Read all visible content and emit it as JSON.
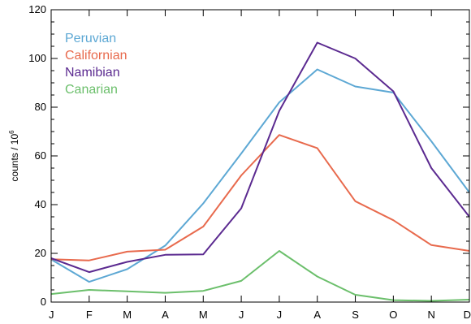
{
  "chart_data": {
    "type": "line",
    "title": "",
    "xlabel": "",
    "ylabel": "counts / 10",
    "ylabel_superscript": "6",
    "categories": [
      "J",
      "F",
      "M",
      "A",
      "M",
      "J",
      "J",
      "A",
      "S",
      "O",
      "N",
      "D"
    ],
    "ylim": [
      0,
      120
    ],
    "yticks": [
      0,
      20,
      40,
      60,
      80,
      100,
      120
    ],
    "grid": false,
    "legend_position": "top-left",
    "series": [
      {
        "name": "Peruvian",
        "color": "#5da8d4",
        "values": [
          17.5,
          8.3,
          13.5,
          23.2,
          40.5,
          61,
          82,
          95.5,
          88.5,
          86,
          66,
          45
        ]
      },
      {
        "name": "Californian",
        "color": "#e86a4d",
        "values": [
          17.6,
          17.1,
          20.7,
          21.5,
          31,
          52,
          68.6,
          63.2,
          41.4,
          33.6,
          23.4,
          21
        ]
      },
      {
        "name": "Namibian",
        "color": "#5b2a90",
        "values": [
          18,
          12.3,
          16.5,
          19.4,
          19.6,
          38.5,
          78.5,
          106.5,
          100,
          86.5,
          55,
          35
        ]
      },
      {
        "name": "Canarian",
        "color": "#6bbf6b",
        "values": [
          3.3,
          5,
          4.4,
          3.8,
          4.6,
          8.7,
          21,
          10.5,
          3,
          0.8,
          0.5,
          1
        ]
      }
    ]
  }
}
